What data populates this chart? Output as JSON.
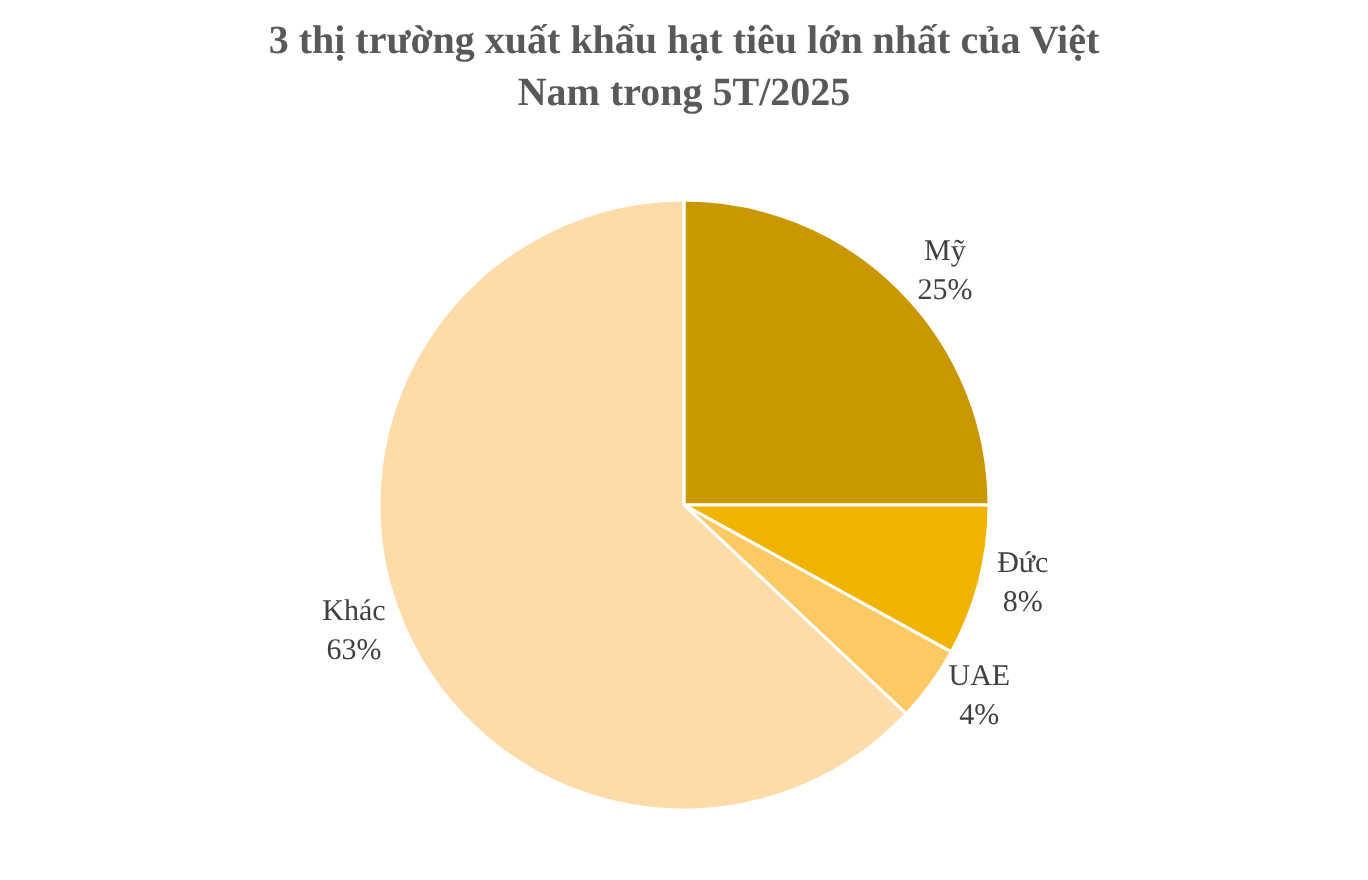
{
  "chart_data": {
    "type": "pie",
    "title": "3 thị trường xuất khẩu hạt tiêu lớn nhất của Việt Nam trong 5T/2025",
    "categories": [
      "Mỹ",
      "Đức",
      "UAE",
      "Khác"
    ],
    "values": [
      25,
      8,
      4,
      63
    ],
    "value_labels": [
      "25%",
      "8%",
      "4%",
      "63%"
    ],
    "colors": [
      "#c99700",
      "#f0b400",
      "#fdc964",
      "#fedcaa"
    ],
    "legend": false
  }
}
